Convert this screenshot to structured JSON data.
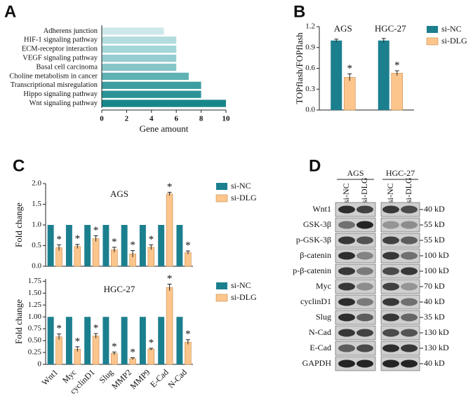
{
  "chart_data": [
    {
      "type": "barh",
      "panel": "A",
      "categories": [
        "Adherens junction",
        "HIF-1 signaling pathway",
        "ECM-receptor interaction",
        "VEGF signaling pathway",
        "Basal cell carcinoma",
        "Choline metabolism in cancer",
        "Transcriptional misregulation",
        "Hippo signaling pathway",
        "Wnt signaling pathway"
      ],
      "values": [
        5,
        6,
        6,
        6,
        6,
        7,
        8,
        8,
        10
      ],
      "colors": [
        "#cde8e9",
        "#b2dcde",
        "#a4d5d7",
        "#95cdd0",
        "#86c5c8",
        "#5fb1b4",
        "#3e9da0",
        "#2a9396",
        "#178689"
      ],
      "xlim": [
        0,
        10
      ],
      "xticks": [
        0,
        2,
        4,
        6,
        8,
        10
      ],
      "xlabel": "Gene amount"
    },
    {
      "type": "bar",
      "panel": "B",
      "x_label_position": "top",
      "categories": [
        "AGS",
        "HGC-27"
      ],
      "series": [
        {
          "name": "si-NC",
          "color": "#1b7f8e",
          "values": [
            1.0,
            1.0
          ],
          "errors": [
            0.02,
            0.03
          ]
        },
        {
          "name": "si-DLG",
          "color": "#fbc58c",
          "values": [
            0.47,
            0.53
          ],
          "errors": [
            0.05,
            0.035
          ]
        }
      ],
      "annotation": "*",
      "ylabel": "TOPflash/FOPflash",
      "ylim": [
        0,
        1.2
      ],
      "yticks": [
        {
          "value": 0,
          "label": "0.0"
        },
        0.3,
        0.6,
        0.9,
        1.2
      ]
    },
    {
      "type": "bar",
      "panel": "C",
      "title": "AGS",
      "series": [
        {
          "name": "si-NC",
          "color": "#1b7f8e",
          "values": [
            1.0,
            1.0,
            1.0,
            1.0,
            1.0,
            1.0,
            1.0,
            1.0
          ],
          "errors": [
            0,
            0,
            0,
            0,
            0,
            0,
            0,
            0
          ]
        },
        {
          "name": "si-DLG",
          "color": "#fbc58c",
          "values": [
            0.45,
            0.48,
            0.67,
            0.4,
            0.3,
            0.46,
            1.75,
            0.33
          ],
          "errors": [
            0.07,
            0.05,
            0.07,
            0.06,
            0.08,
            0.06,
            0.04,
            0.04
          ]
        }
      ],
      "annotation": "*",
      "ylabel": "Fold change",
      "ylim": [
        0,
        2.0
      ],
      "yticks": [
        {
          "value": 0,
          "label": "0.0"
        },
        0.5,
        {
          "value": 1.0,
          "label": "1.0"
        },
        1.5,
        {
          "value": 2.0,
          "label": "2.0"
        }
      ]
    },
    {
      "type": "bar",
      "title": "HGC-27",
      "x_label_position": "bottom",
      "categories": [
        "Wnt1",
        "Myc",
        "cyclinD1",
        "Slug",
        "MMP2",
        "MMP9",
        "E-Cad",
        "N-Cad"
      ],
      "series": [
        {
          "name": "si-NC",
          "color": "#1b7f8e",
          "values": [
            1.0,
            1.0,
            1.0,
            1.0,
            1.0,
            1.0,
            1.0,
            1.0
          ],
          "errors": [
            0,
            0,
            0,
            0,
            0,
            0,
            0,
            0
          ]
        },
        {
          "name": "si-DLG",
          "color": "#fbc58c",
          "values": [
            0.58,
            0.32,
            0.6,
            0.23,
            0.12,
            0.32,
            1.62,
            0.47
          ],
          "errors": [
            0.06,
            0.05,
            0.05,
            0.03,
            0.02,
            0.02,
            0.07,
            0.05
          ]
        }
      ],
      "annotation": "*",
      "ylabel": "Fold change",
      "ylim": [
        0,
        1.8
      ],
      "yticks": [
        0,
        0.25,
        {
          "value": 0.5,
          "label": "0.50"
        },
        0.75,
        {
          "value": 1.0,
          "label": "1.00"
        },
        1.25,
        {
          "value": 1.5,
          "label": "1.50"
        },
        1.75
      ]
    }
  ],
  "blot": {
    "panel": "D",
    "groups": [
      "AGS",
      "HGC-27"
    ],
    "lanes": [
      "si-NC",
      "si-DLG",
      "si-NC",
      "si-DLG"
    ],
    "rows": [
      {
        "protein": "Wnt1",
        "size": "40 kD"
      },
      {
        "protein": "GSK-3β",
        "size": "55 kD"
      },
      {
        "protein": "p-GSK-3β",
        "size": "55 kD"
      },
      {
        "protein": "β-catenin",
        "size": "100 kD"
      },
      {
        "protein": "p-β-catenin",
        "size": "100 kD"
      },
      {
        "protein": "Myc",
        "size": "70 kD"
      },
      {
        "protein": "cyclinD1",
        "size": "40 kD"
      },
      {
        "protein": "Slug",
        "size": "35 kD"
      },
      {
        "protein": "N-Cad",
        "size": "130 kD"
      },
      {
        "protein": "E-Cad",
        "size": "130 kD"
      },
      {
        "protein": "GAPDH",
        "size": "40 kD"
      }
    ]
  }
}
